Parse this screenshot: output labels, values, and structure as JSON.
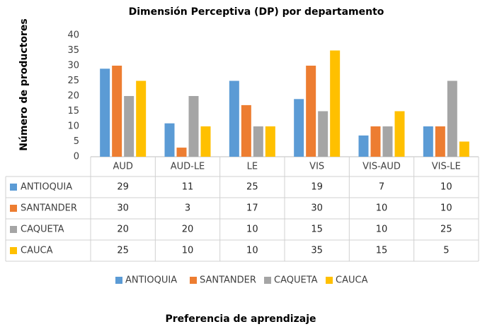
{
  "chart_data": {
    "type": "bar",
    "title": "Dimensión Perceptiva (DP) por departamento",
    "y_label": "Número de productores",
    "x_label": "Preferencia de aprendizaje",
    "categories": [
      "AUD",
      "AUD-LE",
      "LE",
      "VIS",
      "VIS-AUD",
      "VIS-LE"
    ],
    "series": [
      {
        "name": "ANTIOQUIA",
        "color": "#5b9bd5",
        "values": [
          29,
          11,
          25,
          19,
          7,
          10
        ]
      },
      {
        "name": "SANTANDER",
        "color": "#ed7d31",
        "values": [
          30,
          3,
          17,
          30,
          10,
          10
        ]
      },
      {
        "name": "CAQUETA",
        "color": "#a5a5a5",
        "values": [
          20,
          20,
          10,
          15,
          10,
          25
        ]
      },
      {
        "name": "CAUCA",
        "color": "#ffc000",
        "values": [
          25,
          10,
          10,
          35,
          15,
          5
        ]
      }
    ],
    "ylim": [
      0,
      40
    ],
    "yticks": [
      0,
      5,
      10,
      15,
      20,
      25,
      30,
      35,
      40
    ],
    "grid": false,
    "legend": "bottom",
    "data_table": true
  }
}
